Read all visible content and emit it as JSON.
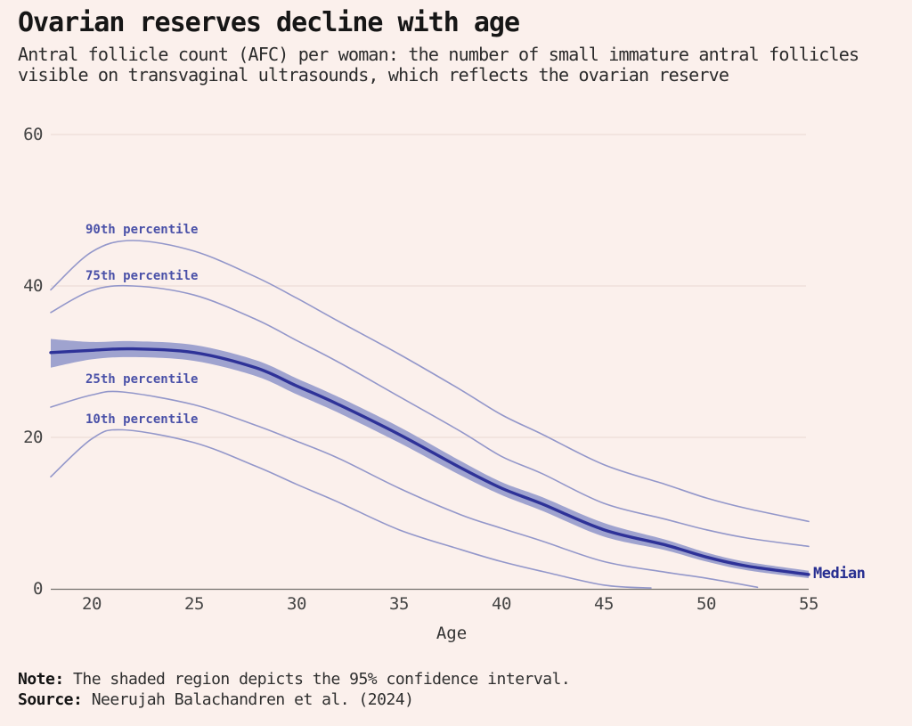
{
  "header": {
    "title": "Ovarian reserves decline with age",
    "subtitle_line1": "Antral follicle count (AFC) per woman: the number of small immature antral follicles",
    "subtitle_line2": "visible on transvaginal ultrasounds, which reflects the ovarian reserve"
  },
  "footer": {
    "note_label": "Note:",
    "note_text": " The shaded region depicts the 95% confidence interval.",
    "source_label": "Source:",
    "source_text": " Neerujah Balachandren et al. (2024)"
  },
  "colors": {
    "background": "#fbf0ec",
    "gridline": "#eddcd7",
    "axis_line": "#75716e",
    "curve_light": "#9397ca",
    "curve_median": "#2e3298",
    "band_fill": "#9fa3cf",
    "series_label": "#4a51a8",
    "median_label": "#272e91",
    "tick_text": "#454545"
  },
  "chart_data": {
    "type": "line",
    "title": "Ovarian reserves decline with age",
    "xlabel": "Age",
    "ylabel": "Antral follicle count (AFC)",
    "xlim": [
      18,
      55
    ],
    "ylim": [
      0,
      60
    ],
    "x_ticks": [
      20,
      25,
      30,
      35,
      40,
      45,
      50,
      55
    ],
    "y_ticks": [
      0,
      20,
      40,
      60
    ],
    "grid": "horizontal",
    "legend": "inline-annotations",
    "note": "Shaded region is the 95% confidence interval around the median",
    "series": [
      {
        "name": "90th percentile",
        "role": "p90",
        "style": "light",
        "x": [
          18,
          20,
          22,
          25,
          28,
          30,
          32,
          35,
          38,
          40,
          42,
          45,
          48,
          50,
          52,
          55
        ],
        "values": [
          39.5,
          44.5,
          46.0,
          44.6,
          41.2,
          38.4,
          35.4,
          31.0,
          26.3,
          23.0,
          20.4,
          16.4,
          13.8,
          12.0,
          10.6,
          8.9
        ]
      },
      {
        "name": "75th percentile",
        "role": "p75",
        "style": "light",
        "x": [
          18,
          20,
          22,
          25,
          28,
          30,
          32,
          35,
          38,
          40,
          42,
          45,
          48,
          50,
          52,
          55
        ],
        "values": [
          36.5,
          39.4,
          40.0,
          38.8,
          35.6,
          32.8,
          30.0,
          25.4,
          20.8,
          17.5,
          15.2,
          11.3,
          9.2,
          7.8,
          6.7,
          5.6
        ]
      },
      {
        "name": "Median",
        "role": "median",
        "style": "dark",
        "x": [
          18,
          20,
          22,
          25,
          28,
          30,
          32,
          35,
          38,
          40,
          42,
          45,
          48,
          50,
          52,
          55
        ],
        "values": [
          31.2,
          31.5,
          31.7,
          31.2,
          29.2,
          26.8,
          24.4,
          20.4,
          16.0,
          13.3,
          11.2,
          7.8,
          5.8,
          4.2,
          3.0,
          1.9
        ],
        "ci_upper": [
          33.0,
          32.6,
          32.7,
          32.2,
          30.2,
          27.8,
          25.4,
          21.4,
          16.9,
          14.1,
          12.1,
          8.7,
          6.5,
          4.8,
          3.55,
          2.4
        ],
        "ci_lower": [
          29.2,
          30.3,
          30.6,
          30.1,
          28.1,
          25.7,
          23.3,
          19.3,
          15.0,
          12.4,
          10.3,
          6.9,
          5.1,
          3.6,
          2.45,
          1.4
        ]
      },
      {
        "name": "25th percentile",
        "role": "p25",
        "style": "light",
        "x": [
          18,
          20,
          21.5,
          25,
          28,
          30,
          32,
          35,
          38,
          40,
          42,
          45,
          48,
          50,
          52.5
        ],
        "values": [
          24.0,
          25.6,
          26.0,
          24.3,
          21.6,
          19.5,
          17.3,
          13.3,
          9.8,
          8.0,
          6.3,
          3.6,
          2.2,
          1.4,
          0.2
        ]
      },
      {
        "name": "10th percentile",
        "role": "p10",
        "style": "light",
        "x": [
          18,
          20,
          21.5,
          25,
          28,
          30,
          32,
          35,
          38,
          40,
          42,
          45,
          47.3
        ],
        "values": [
          14.8,
          19.8,
          21.0,
          19.3,
          16.2,
          13.8,
          11.5,
          7.8,
          5.2,
          3.6,
          2.3,
          0.5,
          0.1
        ]
      }
    ]
  }
}
